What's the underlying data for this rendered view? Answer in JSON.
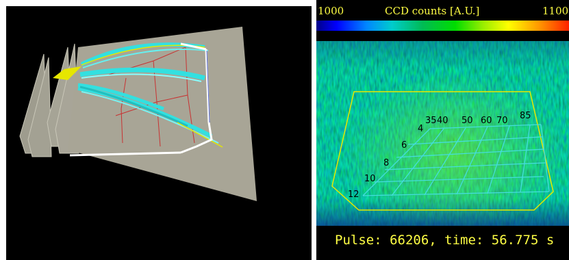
{
  "colorbar": {
    "min_label": "1000",
    "title": "CCD counts [A.U.]",
    "max_label": "1100"
  },
  "grid_labels": {
    "left": [
      "12",
      "10",
      "8",
      "6",
      "4"
    ],
    "top": [
      "35",
      "40",
      "50",
      "60",
      "70",
      "85"
    ]
  },
  "status": {
    "text": "Pulse: 66206, time: 56.775 s"
  },
  "colors": {
    "label_yellow": "#ffff44",
    "grid_cyan": "#44dddd",
    "outline_yellow": "#e8e800",
    "plate_gray": "#a8a596"
  }
}
